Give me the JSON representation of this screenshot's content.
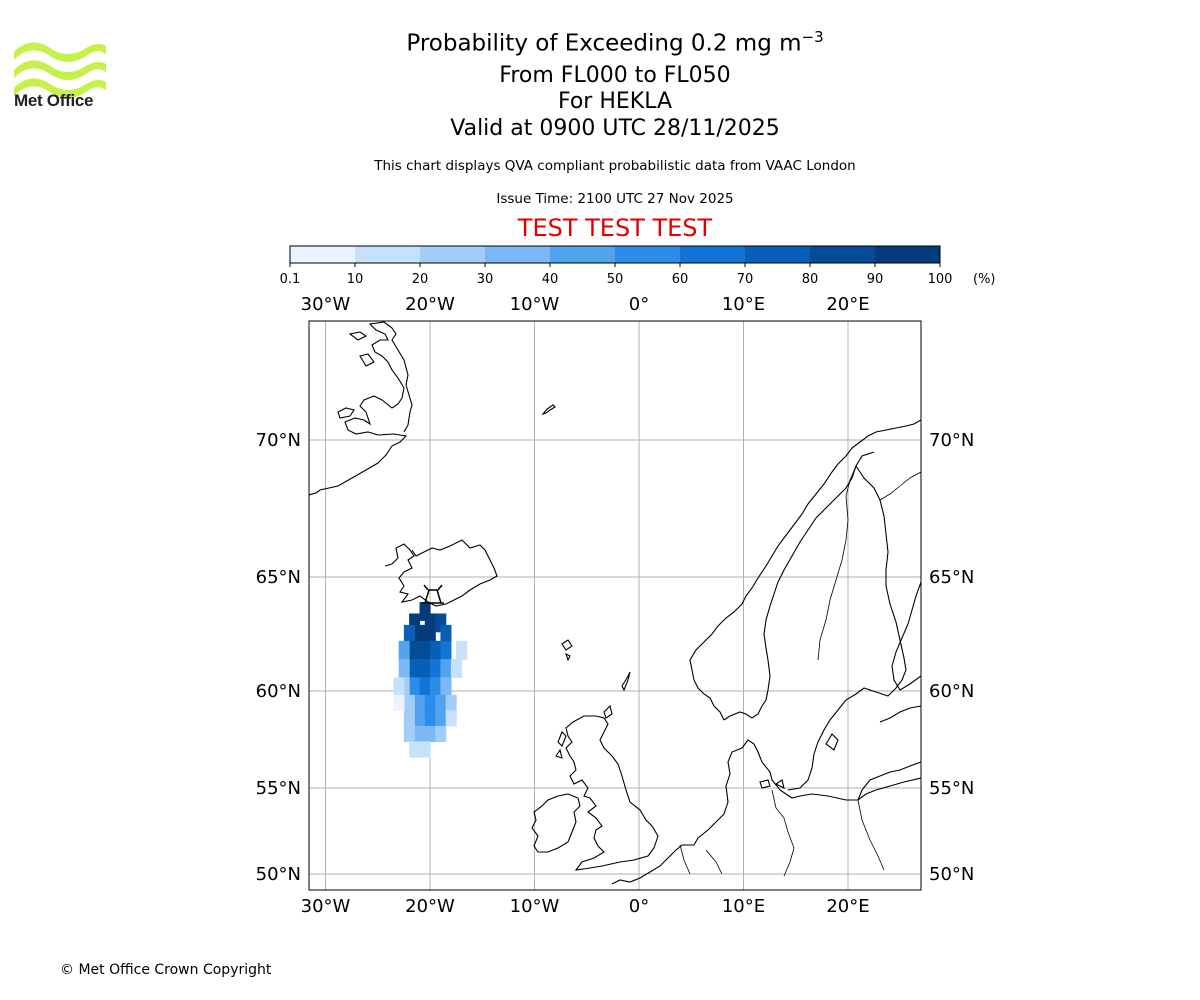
{
  "header": {
    "logo_text": "Met Office",
    "title_prefix": "Probability of Exceeding 0.2 mg m",
    "title_exponent": "−3",
    "flight_levels": "From FL000 to FL050",
    "volcano": "For HEKLA",
    "valid_time": "Valid at 0900 UTC 28/11/2025",
    "description": "This chart displays QVA compliant probabilistic data from VAAC London",
    "issue_time": "Issue Time: 2100 UTC 27 Nov 2025",
    "test_banner": "TEST TEST TEST"
  },
  "colorbar": {
    "ticks": [
      "0.1",
      "10",
      "20",
      "30",
      "40",
      "50",
      "60",
      "70",
      "80",
      "90",
      "100"
    ],
    "unit": "(%)",
    "colors": [
      "#eaf4fe",
      "#c6e1fa",
      "#a2cdf7",
      "#7cb9f4",
      "#52a3ef",
      "#2b8cea",
      "#1274d6",
      "#075fb8",
      "#054c98",
      "#043b7a",
      "#03295a"
    ]
  },
  "chart_data": {
    "type": "map",
    "projection": "lat-lon",
    "lon_ticks": [
      "30°W",
      "20°W",
      "10°W",
      "0°",
      "10°E",
      "20°E"
    ],
    "lat_ticks": [
      "70°N",
      "65°N",
      "60°N",
      "55°N",
      "50°N"
    ],
    "lon_range": [
      -31.5,
      27
    ],
    "lat_range": [
      49,
      74.5
    ],
    "source_marker": {
      "name": "HEKLA",
      "lon": -19.7,
      "lat": 64.0
    },
    "ash_probability_percent": [
      [
        -20.5,
        63.5,
        95
      ],
      [
        -21.5,
        63,
        95
      ],
      [
        -20,
        63,
        95
      ],
      [
        -21,
        62.5,
        95
      ],
      [
        -20,
        62.5,
        90
      ],
      [
        -19,
        63,
        80
      ],
      [
        -18.5,
        62.5,
        70
      ],
      [
        -22,
        62.5,
        70
      ],
      [
        -21.5,
        61.8,
        85
      ],
      [
        -20.5,
        61.8,
        85
      ],
      [
        -19.5,
        61.8,
        75
      ],
      [
        -18.5,
        61.8,
        60
      ],
      [
        -22.5,
        61.8,
        45
      ],
      [
        -21.5,
        61,
        75
      ],
      [
        -20.5,
        61,
        75
      ],
      [
        -19.5,
        61,
        65
      ],
      [
        -18.5,
        61,
        45
      ],
      [
        -22.5,
        61,
        35
      ],
      [
        -21.5,
        60.2,
        55
      ],
      [
        -20.5,
        60.2,
        65
      ],
      [
        -19.5,
        60.2,
        55
      ],
      [
        -18.5,
        60.2,
        35
      ],
      [
        -22.5,
        60.2,
        25
      ],
      [
        -21,
        59.4,
        45
      ],
      [
        -20,
        59.4,
        55
      ],
      [
        -19,
        59.4,
        45
      ],
      [
        -22,
        59.4,
        25
      ],
      [
        -18,
        59.4,
        20
      ],
      [
        -21,
        58.6,
        45
      ],
      [
        -20,
        58.6,
        50
      ],
      [
        -19,
        58.6,
        40
      ],
      [
        -22,
        58.6,
        25
      ],
      [
        -18,
        58.6,
        15
      ],
      [
        -21,
        57.8,
        35
      ],
      [
        -20,
        57.8,
        35
      ],
      [
        -22,
        57.8,
        20
      ],
      [
        -19,
        57.8,
        25
      ],
      [
        -21.5,
        57,
        15
      ],
      [
        -20.5,
        57,
        15
      ],
      [
        -23,
        60.2,
        10
      ],
      [
        -23,
        59.4,
        8
      ],
      [
        -17.5,
        61,
        15
      ],
      [
        -17,
        61.8,
        10
      ]
    ]
  },
  "footer": {
    "copyright": "© Met Office Crown Copyright"
  }
}
